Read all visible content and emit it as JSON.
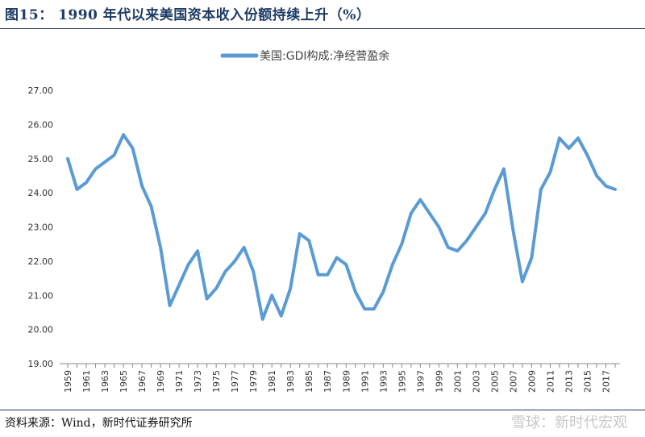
{
  "figure": {
    "title": "图15： 1990 年代以来美国资本收入份额持续上升（%）",
    "source": "资料来源：Wind，新时代证券研究所",
    "watermark": "雪球：新时代宏观"
  },
  "chart_data": {
    "type": "line",
    "series": [
      {
        "name": "美国:GDI构成:净经营盈余",
        "color": "#5b9bd5",
        "values": [
          25.0,
          24.1,
          24.3,
          24.7,
          24.9,
          25.1,
          25.7,
          25.3,
          24.2,
          23.6,
          22.4,
          20.7,
          21.3,
          21.9,
          22.3,
          20.9,
          21.2,
          21.7,
          22.0,
          22.4,
          21.7,
          20.3,
          21.0,
          20.4,
          21.2,
          22.8,
          22.6,
          21.6,
          21.6,
          22.1,
          21.9,
          21.1,
          20.6,
          20.6,
          21.1,
          21.9,
          22.5,
          23.4,
          23.8,
          23.4,
          23.0,
          22.4,
          22.3,
          22.6,
          23.0,
          23.4,
          24.1,
          24.7,
          22.9,
          21.4,
          22.1,
          24.1,
          24.6,
          25.6,
          25.3,
          25.6,
          25.1,
          24.5,
          24.2,
          24.1
        ]
      }
    ],
    "x": [
      1959,
      1960,
      1961,
      1962,
      1963,
      1964,
      1965,
      1966,
      1967,
      1968,
      1969,
      1970,
      1971,
      1972,
      1973,
      1974,
      1975,
      1976,
      1977,
      1978,
      1979,
      1980,
      1981,
      1982,
      1983,
      1984,
      1985,
      1986,
      1987,
      1988,
      1989,
      1990,
      1991,
      1992,
      1993,
      1994,
      1995,
      1996,
      1997,
      1998,
      1999,
      2000,
      2001,
      2002,
      2003,
      2004,
      2005,
      2006,
      2007,
      2008,
      2009,
      2010,
      2011,
      2012,
      2013,
      2014,
      2015,
      2016,
      2017,
      2018
    ],
    "x_tick_labels": [
      "1959",
      "1961",
      "1963",
      "1965",
      "1967",
      "1969",
      "1971",
      "1973",
      "1975",
      "1977",
      "1979",
      "1981",
      "1983",
      "1985",
      "1987",
      "1989",
      "1991",
      "1993",
      "1995",
      "1997",
      "1999",
      "2001",
      "2003",
      "2005",
      "2007",
      "2009",
      "2011",
      "2013",
      "2015",
      "2017"
    ],
    "y_tick_labels": [
      "19.00",
      "20.00",
      "21.00",
      "22.00",
      "23.00",
      "24.00",
      "25.00",
      "26.00",
      "27.00"
    ],
    "ylim": [
      19,
      27
    ],
    "legend_position": "top",
    "grid": false
  }
}
